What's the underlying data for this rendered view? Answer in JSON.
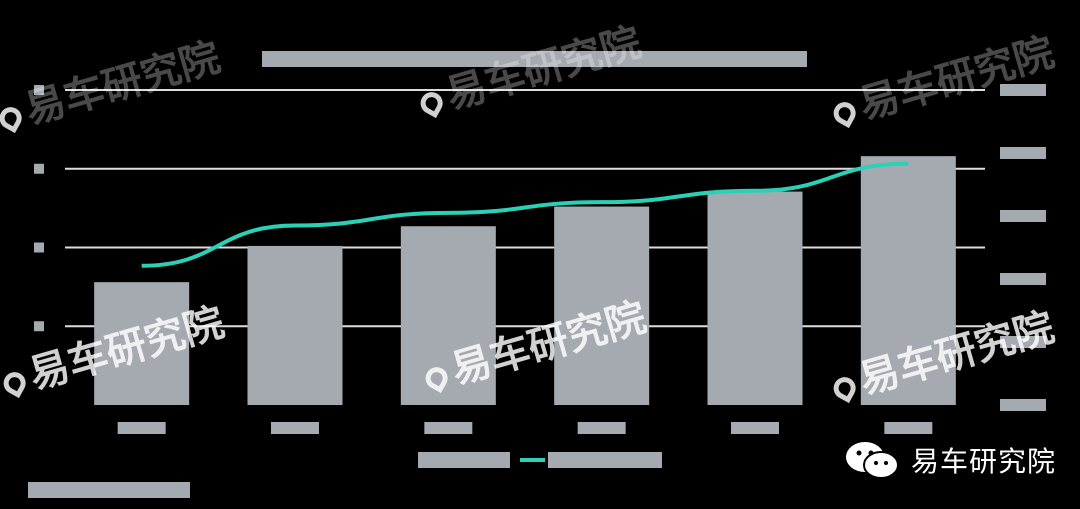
{
  "chart_data": {
    "type": "bar",
    "title": "",
    "categories": [
      "",
      "",
      "",
      "",
      "",
      ""
    ],
    "series": [
      {
        "type": "bar",
        "values": [
          1.56,
          2.02,
          2.27,
          2.52,
          2.71,
          3.16
        ],
        "axis": "left"
      },
      {
        "type": "line",
        "values": [
          2210,
          2850,
          3050,
          3220,
          3400,
          3830
        ],
        "axis": "right"
      }
    ],
    "yleft_ticks": [
      "",
      "",
      "",
      "",
      ""
    ],
    "yright_ticks": [
      "",
      "",
      "",
      "",
      "",
      ""
    ],
    "ylim_left": [
      0,
      4
    ],
    "ylim_right": [
      0,
      5000
    ],
    "legend": [
      "",
      ""
    ],
    "source": "",
    "colors": {
      "bar": "#a5a9b0",
      "line": "#2bd1b6",
      "grid": "#dcdde0",
      "tick": "#a5a9b0"
    }
  },
  "watermarks": [
    "易车研究院",
    "易车研究院",
    "易车研究院",
    "易车研究院",
    "易车研究院",
    "易车研究院",
    "易车研究院"
  ],
  "brand": {
    "label": "易车研究院",
    "icon": "wechat-icon"
  }
}
